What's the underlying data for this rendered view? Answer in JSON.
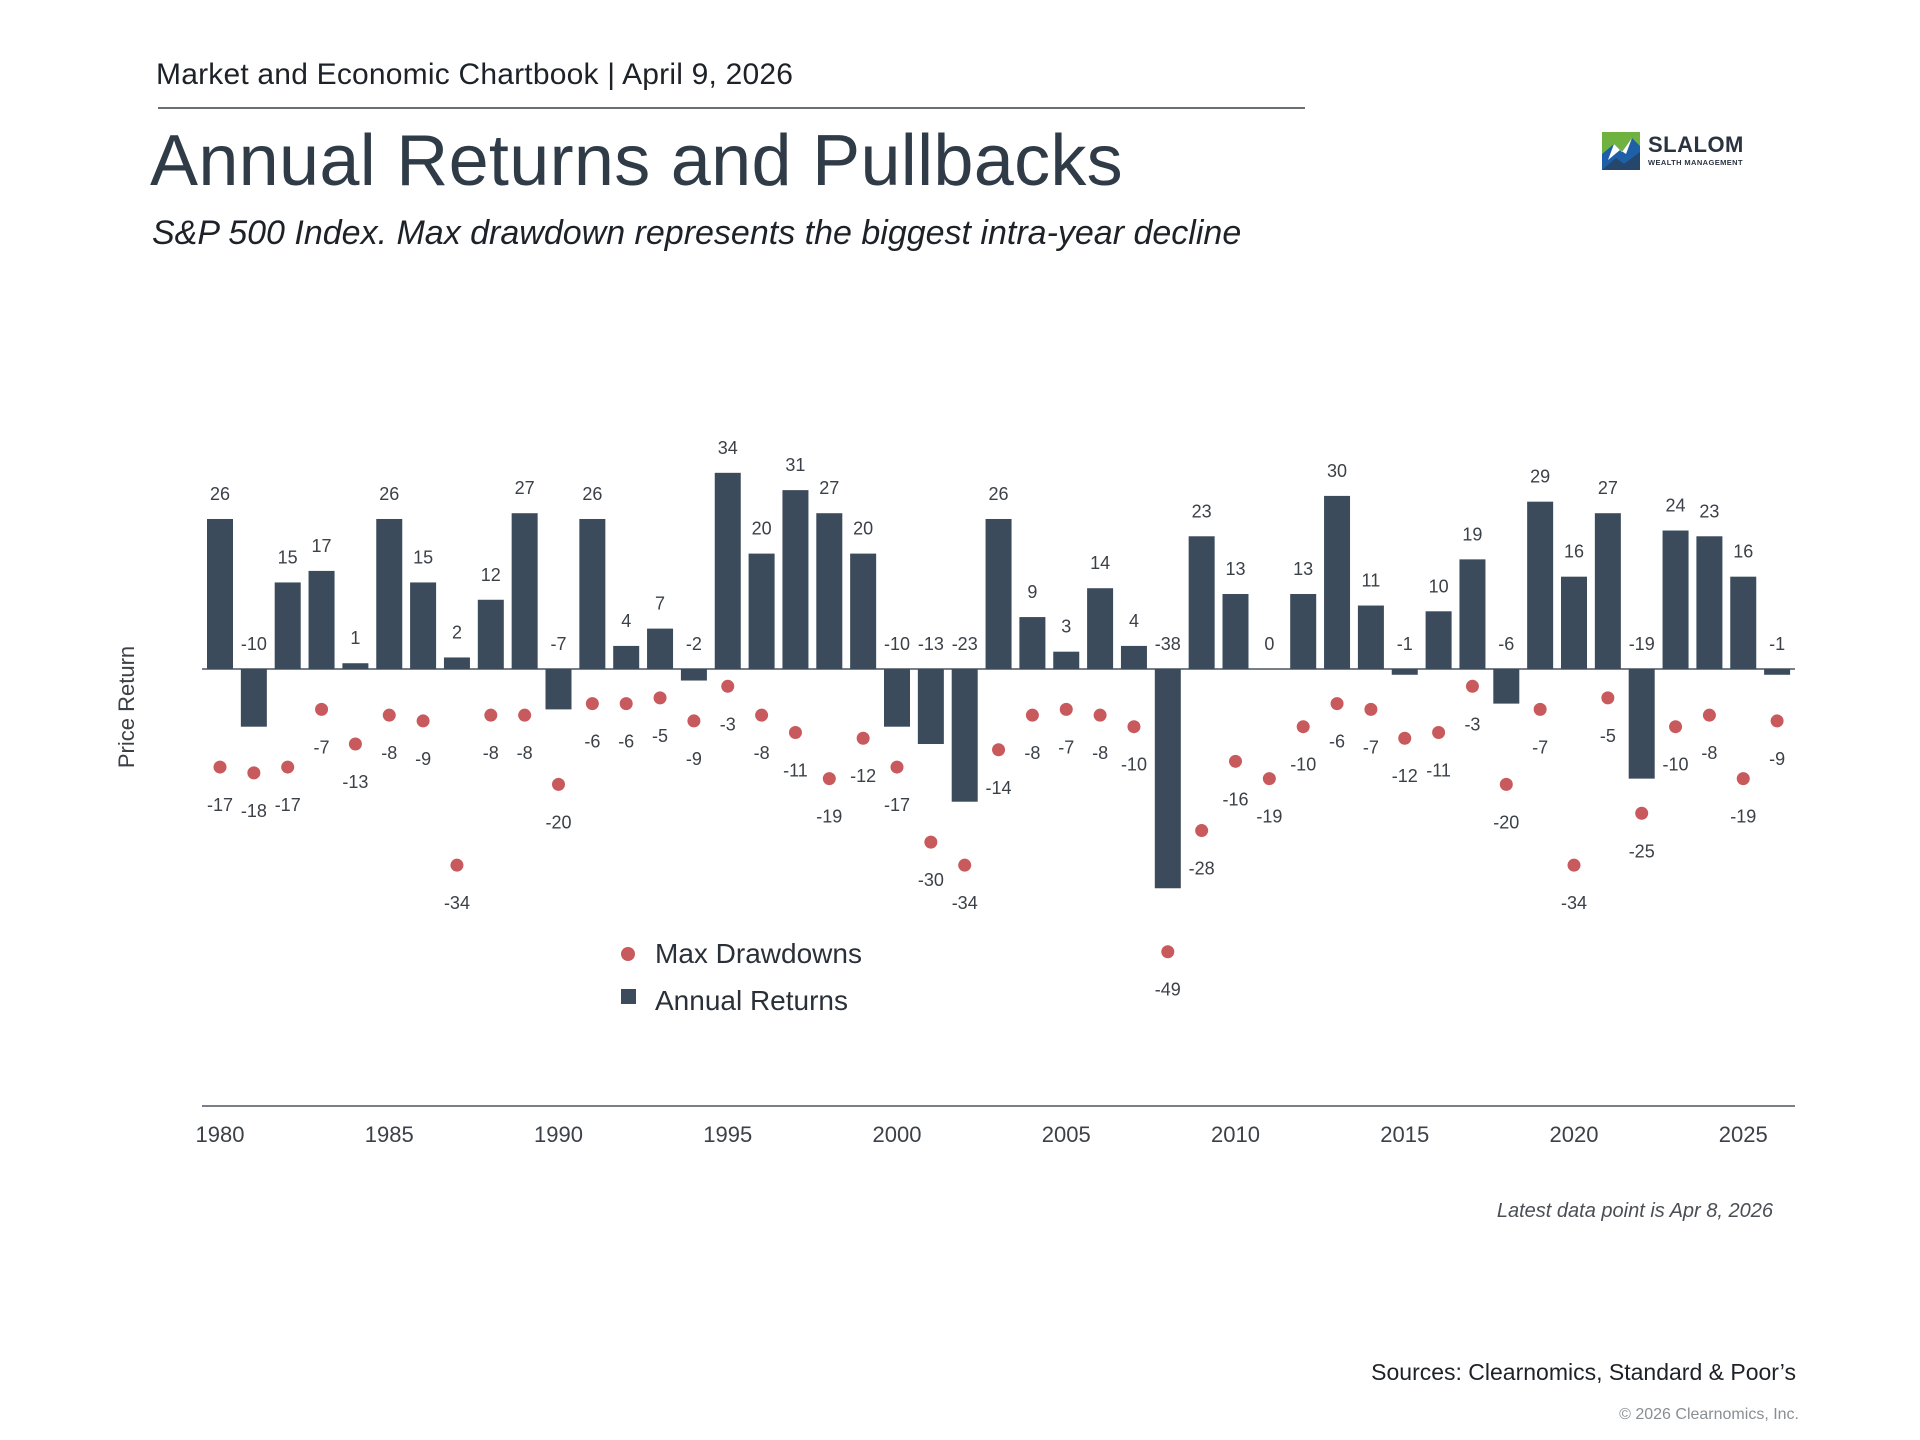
{
  "header": {
    "chartbook": "Market and Economic Chartbook | April 9, 2026",
    "title": "Annual Returns and Pullbacks",
    "subtitle": "S&P 500 Index. Max drawdown represents the biggest intra-year decline"
  },
  "logo": {
    "name": "SLALOM",
    "tagline": "WEALTH MANAGEMENT"
  },
  "colors": {
    "bar": "#3b4b5c",
    "dot": "#c8595c",
    "text": "#2f3b47"
  },
  "chart_data": {
    "type": "bar",
    "ylabel": "Price Return",
    "xlabel": "",
    "years": [
      1980,
      1981,
      1982,
      1983,
      1984,
      1985,
      1986,
      1987,
      1988,
      1989,
      1990,
      1991,
      1992,
      1993,
      1994,
      1995,
      1996,
      1997,
      1998,
      1999,
      2000,
      2001,
      2002,
      2003,
      2004,
      2005,
      2006,
      2007,
      2008,
      2009,
      2010,
      2011,
      2012,
      2013,
      2014,
      2015,
      2016,
      2017,
      2018,
      2019,
      2020,
      2021,
      2022,
      2023,
      2024,
      2025,
      2026
    ],
    "x_ticks": [
      "1980",
      "1985",
      "1990",
      "1995",
      "2000",
      "2005",
      "2010",
      "2015",
      "2020",
      "2025"
    ],
    "series": [
      {
        "name": "Annual Returns",
        "type": "bar",
        "values": [
          26,
          -10,
          15,
          17,
          1,
          26,
          15,
          2,
          12,
          27,
          -7,
          26,
          4,
          7,
          -2,
          34,
          20,
          31,
          27,
          20,
          -10,
          -13,
          -23,
          26,
          9,
          3,
          14,
          4,
          -38,
          23,
          13,
          0,
          13,
          30,
          11,
          -1,
          10,
          19,
          -6,
          29,
          16,
          27,
          -19,
          24,
          23,
          16,
          -1
        ]
      },
      {
        "name": "Max Drawdowns",
        "type": "scatter",
        "values": [
          -17,
          -18,
          -17,
          -7,
          -13,
          -8,
          -9,
          -34,
          -8,
          -8,
          -20,
          -6,
          -6,
          -5,
          -9,
          -3,
          -8,
          -11,
          -19,
          -12,
          -17,
          -30,
          -34,
          -14,
          -8,
          -7,
          -8,
          -10,
          -49,
          -28,
          -16,
          -19,
          -10,
          -6,
          -7,
          -12,
          -11,
          -3,
          -20,
          -7,
          -34,
          -5,
          -25,
          -10,
          -8,
          -19,
          -9
        ]
      }
    ],
    "ylim": [
      -60,
      40
    ],
    "legend": {
      "placement": "bottom-center"
    }
  },
  "footer": {
    "latest_note": "Latest data point is Apr 8, 2026",
    "sources": "Sources: Clearnomics, Standard & Poor’s",
    "copyright": "© 2026 Clearnomics, Inc."
  }
}
